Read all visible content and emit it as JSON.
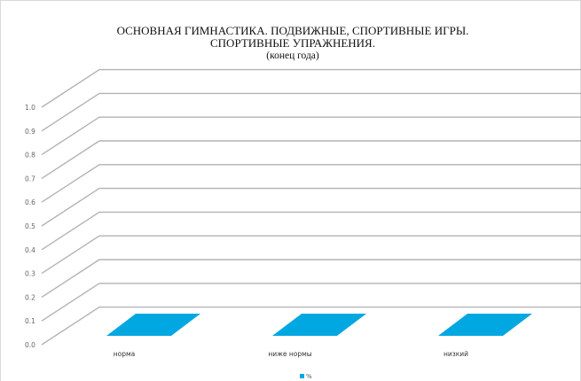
{
  "chart_data": {
    "type": "bar",
    "title_lines": [
      "ОСНОВНАЯ ГИМНАСТИКА. ПОДВИЖНЫЕ, СПОРТИВНЫЕ ИГРЫ.",
      "СПОРТИВНЫЕ УПРАЖНЕНИЯ.",
      "(конец года)"
    ],
    "categories": [
      "норма",
      "ниже нормы",
      "низкий"
    ],
    "series": [
      {
        "name": "%",
        "values": [
          0,
          0,
          0
        ],
        "color": "#00a7e1"
      }
    ],
    "yticks": [
      "0.0",
      "0.1",
      "0.2",
      "0.3",
      "0.4",
      "0.5",
      "0.6",
      "0.7",
      "0.8",
      "0.9",
      "1.0"
    ],
    "ylim": [
      0,
      1
    ],
    "grid": true,
    "projection": "3d",
    "legend": "bottom",
    "gridline_color": "#b3b3b3",
    "tick_label_color": "#666666"
  }
}
